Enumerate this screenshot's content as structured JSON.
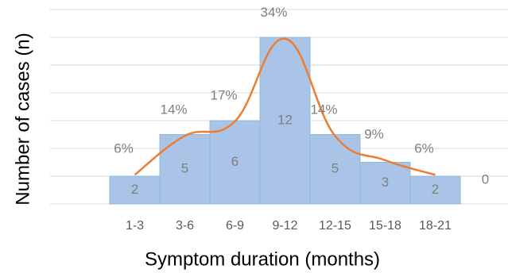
{
  "chart_data": {
    "type": "bar",
    "xlabel": "Symptom duration (months)",
    "ylabel": "Number of cases (n)",
    "categories": [
      "1-3",
      "3-6",
      "6-9",
      "9-12",
      "12-15",
      "15-18",
      "18-21",
      null
    ],
    "series": [
      {
        "type": "bar",
        "color": "#a9c4e6",
        "values": [
          2,
          5,
          6,
          12,
          5,
          3,
          2,
          0
        ]
      },
      {
        "type": "line",
        "axis": "y2",
        "color": "#ed7d31",
        "values": [
          6,
          14,
          17,
          34,
          14,
          9,
          6,
          null
        ],
        "value_labels": [
          "6%",
          "14%",
          "17%",
          "34%",
          "14%",
          "9%",
          "6%",
          null
        ]
      }
    ],
    "ylim": [
      0,
      14
    ],
    "yticks": [
      0,
      2,
      4,
      6,
      8,
      10,
      12,
      14
    ],
    "y2lim": [
      0,
      40
    ],
    "grid": true
  }
}
